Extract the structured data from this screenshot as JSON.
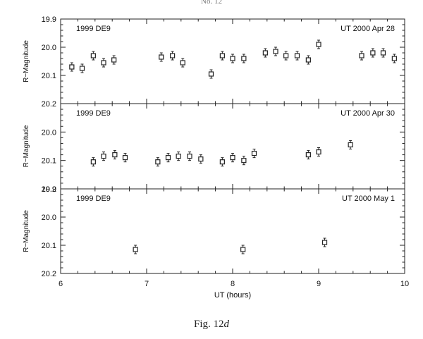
{
  "header": {
    "running_head": "No. 12"
  },
  "figure": {
    "caption_prefix": "Fig. 12",
    "caption_suffix": "d"
  },
  "chart_data": {
    "type": "scatter",
    "shared_x": {
      "label": "UT (hours)",
      "range": [
        6,
        10
      ],
      "ticks": [
        "6",
        "7",
        "8",
        "9",
        "10"
      ]
    },
    "panels": [
      {
        "object_label": "1999 DE9",
        "date_label": "UT 2000 Apr 28",
        "ylabel": "R−Magnitude",
        "ylim": [
          20.2,
          19.9
        ],
        "y_ticks": [
          "19.9",
          "20.0",
          "20.1",
          "20.2"
        ],
        "points": [
          {
            "x": 6.13,
            "y": 20.07,
            "err": 0.015
          },
          {
            "x": 6.25,
            "y": 20.075,
            "err": 0.015
          },
          {
            "x": 6.38,
            "y": 20.03,
            "err": 0.015
          },
          {
            "x": 6.5,
            "y": 20.055,
            "err": 0.015
          },
          {
            "x": 6.62,
            "y": 20.045,
            "err": 0.015
          },
          {
            "x": 7.17,
            "y": 20.035,
            "err": 0.015
          },
          {
            "x": 7.3,
            "y": 20.03,
            "err": 0.015
          },
          {
            "x": 7.42,
            "y": 20.055,
            "err": 0.015
          },
          {
            "x": 7.75,
            "y": 20.095,
            "err": 0.015
          },
          {
            "x": 7.88,
            "y": 20.03,
            "err": 0.015
          },
          {
            "x": 8.0,
            "y": 20.04,
            "err": 0.015
          },
          {
            "x": 8.13,
            "y": 20.04,
            "err": 0.015
          },
          {
            "x": 8.38,
            "y": 20.02,
            "err": 0.015
          },
          {
            "x": 8.5,
            "y": 20.015,
            "err": 0.015
          },
          {
            "x": 8.62,
            "y": 20.03,
            "err": 0.015
          },
          {
            "x": 8.75,
            "y": 20.03,
            "err": 0.015
          },
          {
            "x": 8.88,
            "y": 20.045,
            "err": 0.015
          },
          {
            "x": 9.0,
            "y": 19.99,
            "err": 0.015
          },
          {
            "x": 9.5,
            "y": 20.03,
            "err": 0.015
          },
          {
            "x": 9.63,
            "y": 20.02,
            "err": 0.015
          },
          {
            "x": 9.75,
            "y": 20.02,
            "err": 0.015
          },
          {
            "x": 9.88,
            "y": 20.04,
            "err": 0.015
          }
        ]
      },
      {
        "object_label": "1999 DE9",
        "date_label": "UT 2000 Apr 30",
        "ylabel": "R−Magnitude",
        "ylim": [
          20.2,
          19.9
        ],
        "y_ticks": [
          "20.0",
          "20.1",
          "20.2"
        ],
        "points": [
          {
            "x": 6.38,
            "y": 20.105,
            "err": 0.015
          },
          {
            "x": 6.5,
            "y": 20.085,
            "err": 0.015
          },
          {
            "x": 6.63,
            "y": 20.08,
            "err": 0.015
          },
          {
            "x": 6.75,
            "y": 20.09,
            "err": 0.015
          },
          {
            "x": 7.13,
            "y": 20.105,
            "err": 0.015
          },
          {
            "x": 7.25,
            "y": 20.09,
            "err": 0.015
          },
          {
            "x": 7.37,
            "y": 20.085,
            "err": 0.015
          },
          {
            "x": 7.5,
            "y": 20.085,
            "err": 0.015
          },
          {
            "x": 7.63,
            "y": 20.095,
            "err": 0.015
          },
          {
            "x": 7.88,
            "y": 20.105,
            "err": 0.015
          },
          {
            "x": 8.0,
            "y": 20.09,
            "err": 0.015
          },
          {
            "x": 8.13,
            "y": 20.1,
            "err": 0.015
          },
          {
            "x": 8.25,
            "y": 20.075,
            "err": 0.015
          },
          {
            "x": 8.88,
            "y": 20.08,
            "err": 0.015
          },
          {
            "x": 9.0,
            "y": 20.07,
            "err": 0.015
          },
          {
            "x": 9.37,
            "y": 20.045,
            "err": 0.015
          }
        ]
      },
      {
        "object_label": "1999 DE9",
        "date_label": "UT 2000 May 1",
        "ylabel": "R−Magnitude",
        "ylim": [
          20.2,
          19.9
        ],
        "y_ticks": [
          "19.9",
          "20.0",
          "20.1",
          "20.2"
        ],
        "points": [
          {
            "x": 6.87,
            "y": 20.115,
            "err": 0.015
          },
          {
            "x": 8.12,
            "y": 20.115,
            "err": 0.015
          },
          {
            "x": 9.07,
            "y": 20.09,
            "err": 0.015
          }
        ]
      }
    ]
  }
}
